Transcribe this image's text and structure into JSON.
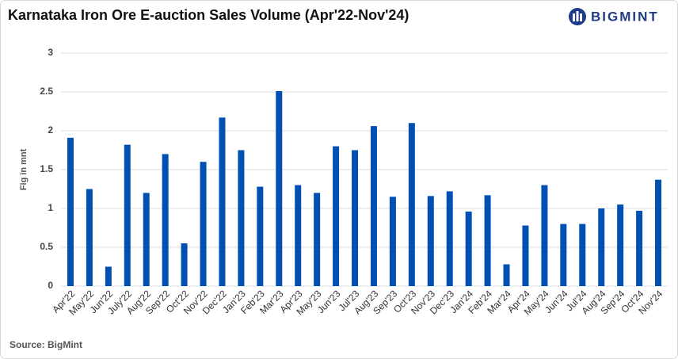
{
  "chart_data": {
    "type": "bar",
    "title": "Karnataka Iron Ore E-auction Sales Volume (Apr'22-Nov'24)",
    "y_label": "Fig in mnt",
    "source": "Source: BigMint",
    "categories": [
      "Apr'22",
      "May'22",
      "Jun'22",
      "July'22",
      "Aug'22",
      "Sep'22",
      "Oct'22",
      "Nov'22",
      "Dec'22",
      "Jan'23",
      "Feb'23",
      "Mar'23",
      "Apr'23",
      "May'23",
      "Jun'23",
      "Jul'23",
      "Aug'23",
      "Sep'23",
      "Oct'23",
      "Nov'23",
      "Dec'23",
      "Jan'24",
      "Feb'24",
      "Mar'24",
      "Apr'24",
      "May'24",
      "Jun'24",
      "Jul'24",
      "Aug'24",
      "Sep'24",
      "Oct'24",
      "Nov'24"
    ],
    "values": [
      1.91,
      1.25,
      0.25,
      1.82,
      1.2,
      1.7,
      0.55,
      1.6,
      2.17,
      1.75,
      1.28,
      2.51,
      1.3,
      1.2,
      1.8,
      1.75,
      2.06,
      1.15,
      2.1,
      1.16,
      1.22,
      0.96,
      1.17,
      0.28,
      0.78,
      1.3,
      0.8,
      0.8,
      1.0,
      1.05,
      0.97,
      1.37
    ],
    "color": "#0050b3",
    "ylim": [
      0,
      3
    ],
    "yticks": [
      0,
      0.5,
      1,
      1.5,
      2,
      2.5,
      3
    ],
    "grid": true
  },
  "logo": "BIGMINT"
}
